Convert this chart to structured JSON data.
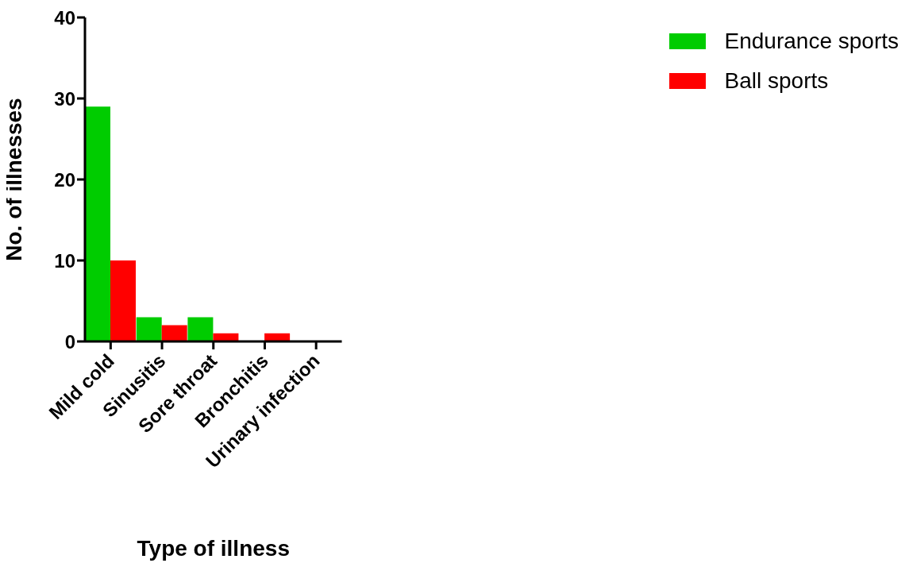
{
  "chart_data": {
    "type": "bar",
    "xlabel": "Type of illness",
    "ylabel": "No. of illnesses",
    "categories": [
      "Mild cold",
      "Sinusitis",
      "Sore throat",
      "Bronchitis",
      "Urinary infection"
    ],
    "series": [
      {
        "name": "Endurance sports",
        "color": "#00cc00",
        "values": [
          29,
          3,
          3,
          0,
          0
        ]
      },
      {
        "name": "Ball sports",
        "color": "#ff0000",
        "values": [
          10,
          2,
          1,
          1,
          0
        ]
      }
    ],
    "ylim": [
      0,
      40
    ],
    "yticks": [
      0,
      10,
      20,
      30,
      40
    ],
    "grid": false,
    "legend": "top right"
  }
}
